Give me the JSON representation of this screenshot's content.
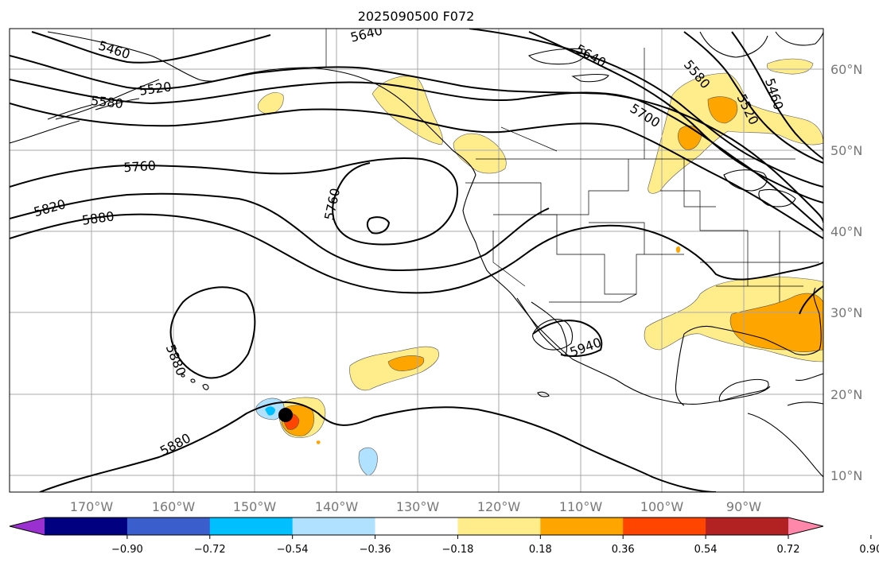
{
  "title": "2025090500 F072",
  "map": {
    "lon_labels": [
      "170°W",
      "160°W",
      "150°W",
      "140°W",
      "130°W",
      "120°W",
      "110°W",
      "100°W",
      "90°W"
    ],
    "lat_labels": [
      "60°N",
      "50°N",
      "40°N",
      "30°N",
      "20°N",
      "10°N"
    ],
    "contour_labels": [
      "5460",
      "5520",
      "5580",
      "5640",
      "5760",
      "5820",
      "5880",
      "5760",
      "5880",
      "5880",
      "5640",
      "5580",
      "5520",
      "5460",
      "5700",
      "5940"
    ],
    "marker": "storm-center"
  },
  "colorbar": {
    "tick_labels": [
      "−0.90",
      "−0.72",
      "−0.54",
      "−0.36",
      "−0.18",
      "0.18",
      "0.36",
      "0.54",
      "0.72",
      "0.90"
    ],
    "colors": [
      "#9b30d0",
      "#000080",
      "#3a5fcd",
      "#00bfff",
      "#b0e2ff",
      "#ffffff",
      "#ffec8b",
      "#ffa500",
      "#ff4500",
      "#b22222",
      "#ff88aa"
    ]
  }
}
